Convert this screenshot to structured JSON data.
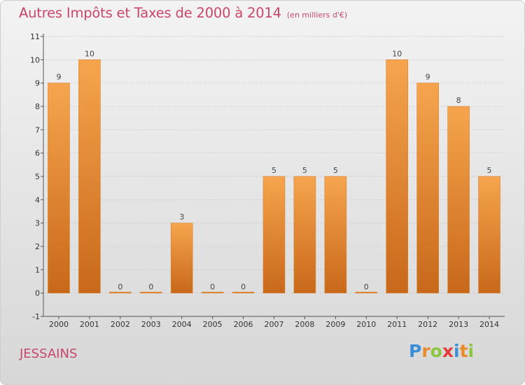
{
  "title": "Autres Impôts et Taxes de 2000 à 2014",
  "subtitle": "(en milliers d'€)",
  "location": "JESSAINS",
  "logo": {
    "letters": [
      "P",
      "r",
      "o",
      "x",
      "i",
      "t",
      "i"
    ],
    "colors": [
      "#3b8fd6",
      "#e98a2b",
      "#8cc63f",
      "#e23b3b",
      "#3b8fd6",
      "#e98a2b",
      "#8cc63f"
    ]
  },
  "colors": {
    "bar_light": "#f6a54e",
    "bar_dark": "#c8681a",
    "title": "#c8476a"
  },
  "chart_data": {
    "type": "bar",
    "title": "Autres Impôts et Taxes de 2000 à 2014",
    "subtitle": "(en milliers d'€)",
    "categories": [
      "2000",
      "2001",
      "2002",
      "2003",
      "2004",
      "2005",
      "2006",
      "2007",
      "2008",
      "2009",
      "2010",
      "2011",
      "2012",
      "2013",
      "2014"
    ],
    "values": [
      9,
      10,
      0,
      0,
      3,
      0,
      0,
      5,
      5,
      5,
      0,
      10,
      9,
      8,
      5
    ],
    "data_labels": [
      "9",
      "10",
      "0",
      "0",
      "3",
      "0",
      "0",
      "5",
      "5",
      "5",
      "0",
      "10",
      "9",
      "8",
      "5"
    ],
    "ylim": [
      -1,
      11
    ],
    "yticks": [
      -1,
      0,
      1,
      2,
      3,
      4,
      5,
      6,
      7,
      8,
      9,
      10,
      11
    ],
    "ytick_labels": [
      "-1",
      "0",
      "1",
      "2",
      "3",
      "4",
      "5",
      "6",
      "7",
      "8",
      "9",
      "10",
      "11"
    ],
    "grid": "horizontal dotted",
    "xlabel": "",
    "ylabel": ""
  }
}
